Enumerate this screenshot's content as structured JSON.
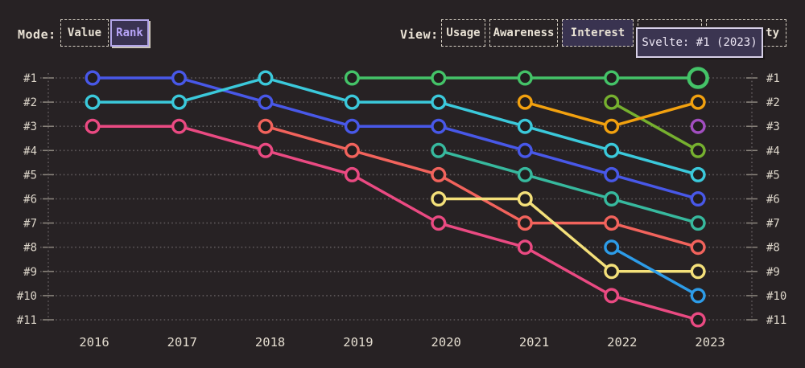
{
  "header": {
    "mode_label": "Mode:",
    "mode_buttons": [
      {
        "label": "Value",
        "selected": false
      },
      {
        "label": "Rank",
        "selected": true
      }
    ],
    "view_label": "View:",
    "view_buttons": [
      {
        "label": "Usage",
        "selected": false,
        "partial": false
      },
      {
        "label": "Awareness",
        "selected": false,
        "partial": false
      },
      {
        "label": "Interest",
        "selected": true,
        "partial": false
      },
      {
        "label": "",
        "selected": false,
        "partial": false
      },
      {
        "label": "ty",
        "selected": false,
        "partial": true
      }
    ],
    "tooltip_text": "Svelte: #1 (2023)"
  },
  "chart_data": {
    "type": "line",
    "subtype": "bump-rank-chart",
    "x": [
      2016,
      2017,
      2018,
      2019,
      2020,
      2021,
      2022,
      2023
    ],
    "y_axis_labels": [
      "#1",
      "#2",
      "#3",
      "#4",
      "#5",
      "#6",
      "#7",
      "#8",
      "#9",
      "#10",
      "#11"
    ],
    "grid": "dotted-horizontal",
    "colors": {
      "background": "#272224",
      "grid": "#5f595b",
      "axis_text": "#ddd6ca",
      "tick": "#8a847c"
    },
    "tooltip": {
      "series": "Svelte",
      "rank": "#1",
      "year": 2023
    },
    "series": [
      {
        "id": "blue",
        "color": "#4858e8",
        "points": [
          [
            2016,
            1
          ],
          [
            2017,
            1
          ],
          [
            2018,
            2
          ],
          [
            2019,
            3
          ],
          [
            2020,
            3
          ],
          [
            2021,
            4
          ],
          [
            2022,
            5
          ],
          [
            2023,
            6
          ]
        ]
      },
      {
        "id": "cyan",
        "color": "#3bc9db",
        "points": [
          [
            2016,
            2
          ],
          [
            2017,
            2
          ],
          [
            2018,
            1
          ],
          [
            2019,
            2
          ],
          [
            2020,
            2
          ],
          [
            2021,
            3
          ],
          [
            2022,
            4
          ],
          [
            2023,
            5
          ]
        ]
      },
      {
        "id": "pink",
        "color": "#ea4a82",
        "points": [
          [
            2016,
            3
          ],
          [
            2017,
            3
          ],
          [
            2018,
            4
          ],
          [
            2019,
            5
          ],
          [
            2020,
            7
          ],
          [
            2021,
            8
          ],
          [
            2022,
            10
          ],
          [
            2023,
            11
          ]
        ]
      },
      {
        "id": "salmon",
        "color": "#f2635c",
        "points": [
          [
            2018,
            3
          ],
          [
            2019,
            4
          ],
          [
            2020,
            5
          ],
          [
            2021,
            7
          ],
          [
            2022,
            7
          ],
          [
            2023,
            8
          ]
        ]
      },
      {
        "id": "teal",
        "color": "#37b99e",
        "points": [
          [
            2020,
            4
          ],
          [
            2021,
            5
          ],
          [
            2022,
            6
          ],
          [
            2023,
            7
          ]
        ]
      },
      {
        "id": "yellow",
        "color": "#f4e07a",
        "points": [
          [
            2020,
            6
          ],
          [
            2021,
            6
          ],
          [
            2022,
            9
          ],
          [
            2023,
            9
          ]
        ]
      },
      {
        "id": "lime",
        "color": "#76b02f",
        "points": [
          [
            2022,
            2
          ],
          [
            2023,
            4
          ]
        ]
      },
      {
        "id": "orange",
        "color": "#f2a10f",
        "points": [
          [
            2021,
            2
          ],
          [
            2022,
            3
          ],
          [
            2023,
            2
          ]
        ]
      },
      {
        "id": "lightblue",
        "color": "#2d9ce8",
        "points": [
          [
            2022,
            8
          ],
          [
            2023,
            10
          ]
        ]
      },
      {
        "id": "purple",
        "color": "#a24ec0",
        "points": [
          [
            2023,
            3
          ]
        ]
      },
      {
        "id": "green",
        "name": "Svelte",
        "color": "#44c368",
        "highlight_last": true,
        "points": [
          [
            2019,
            1
          ],
          [
            2020,
            1
          ],
          [
            2021,
            1
          ],
          [
            2022,
            1
          ],
          [
            2023,
            1
          ]
        ]
      }
    ]
  }
}
